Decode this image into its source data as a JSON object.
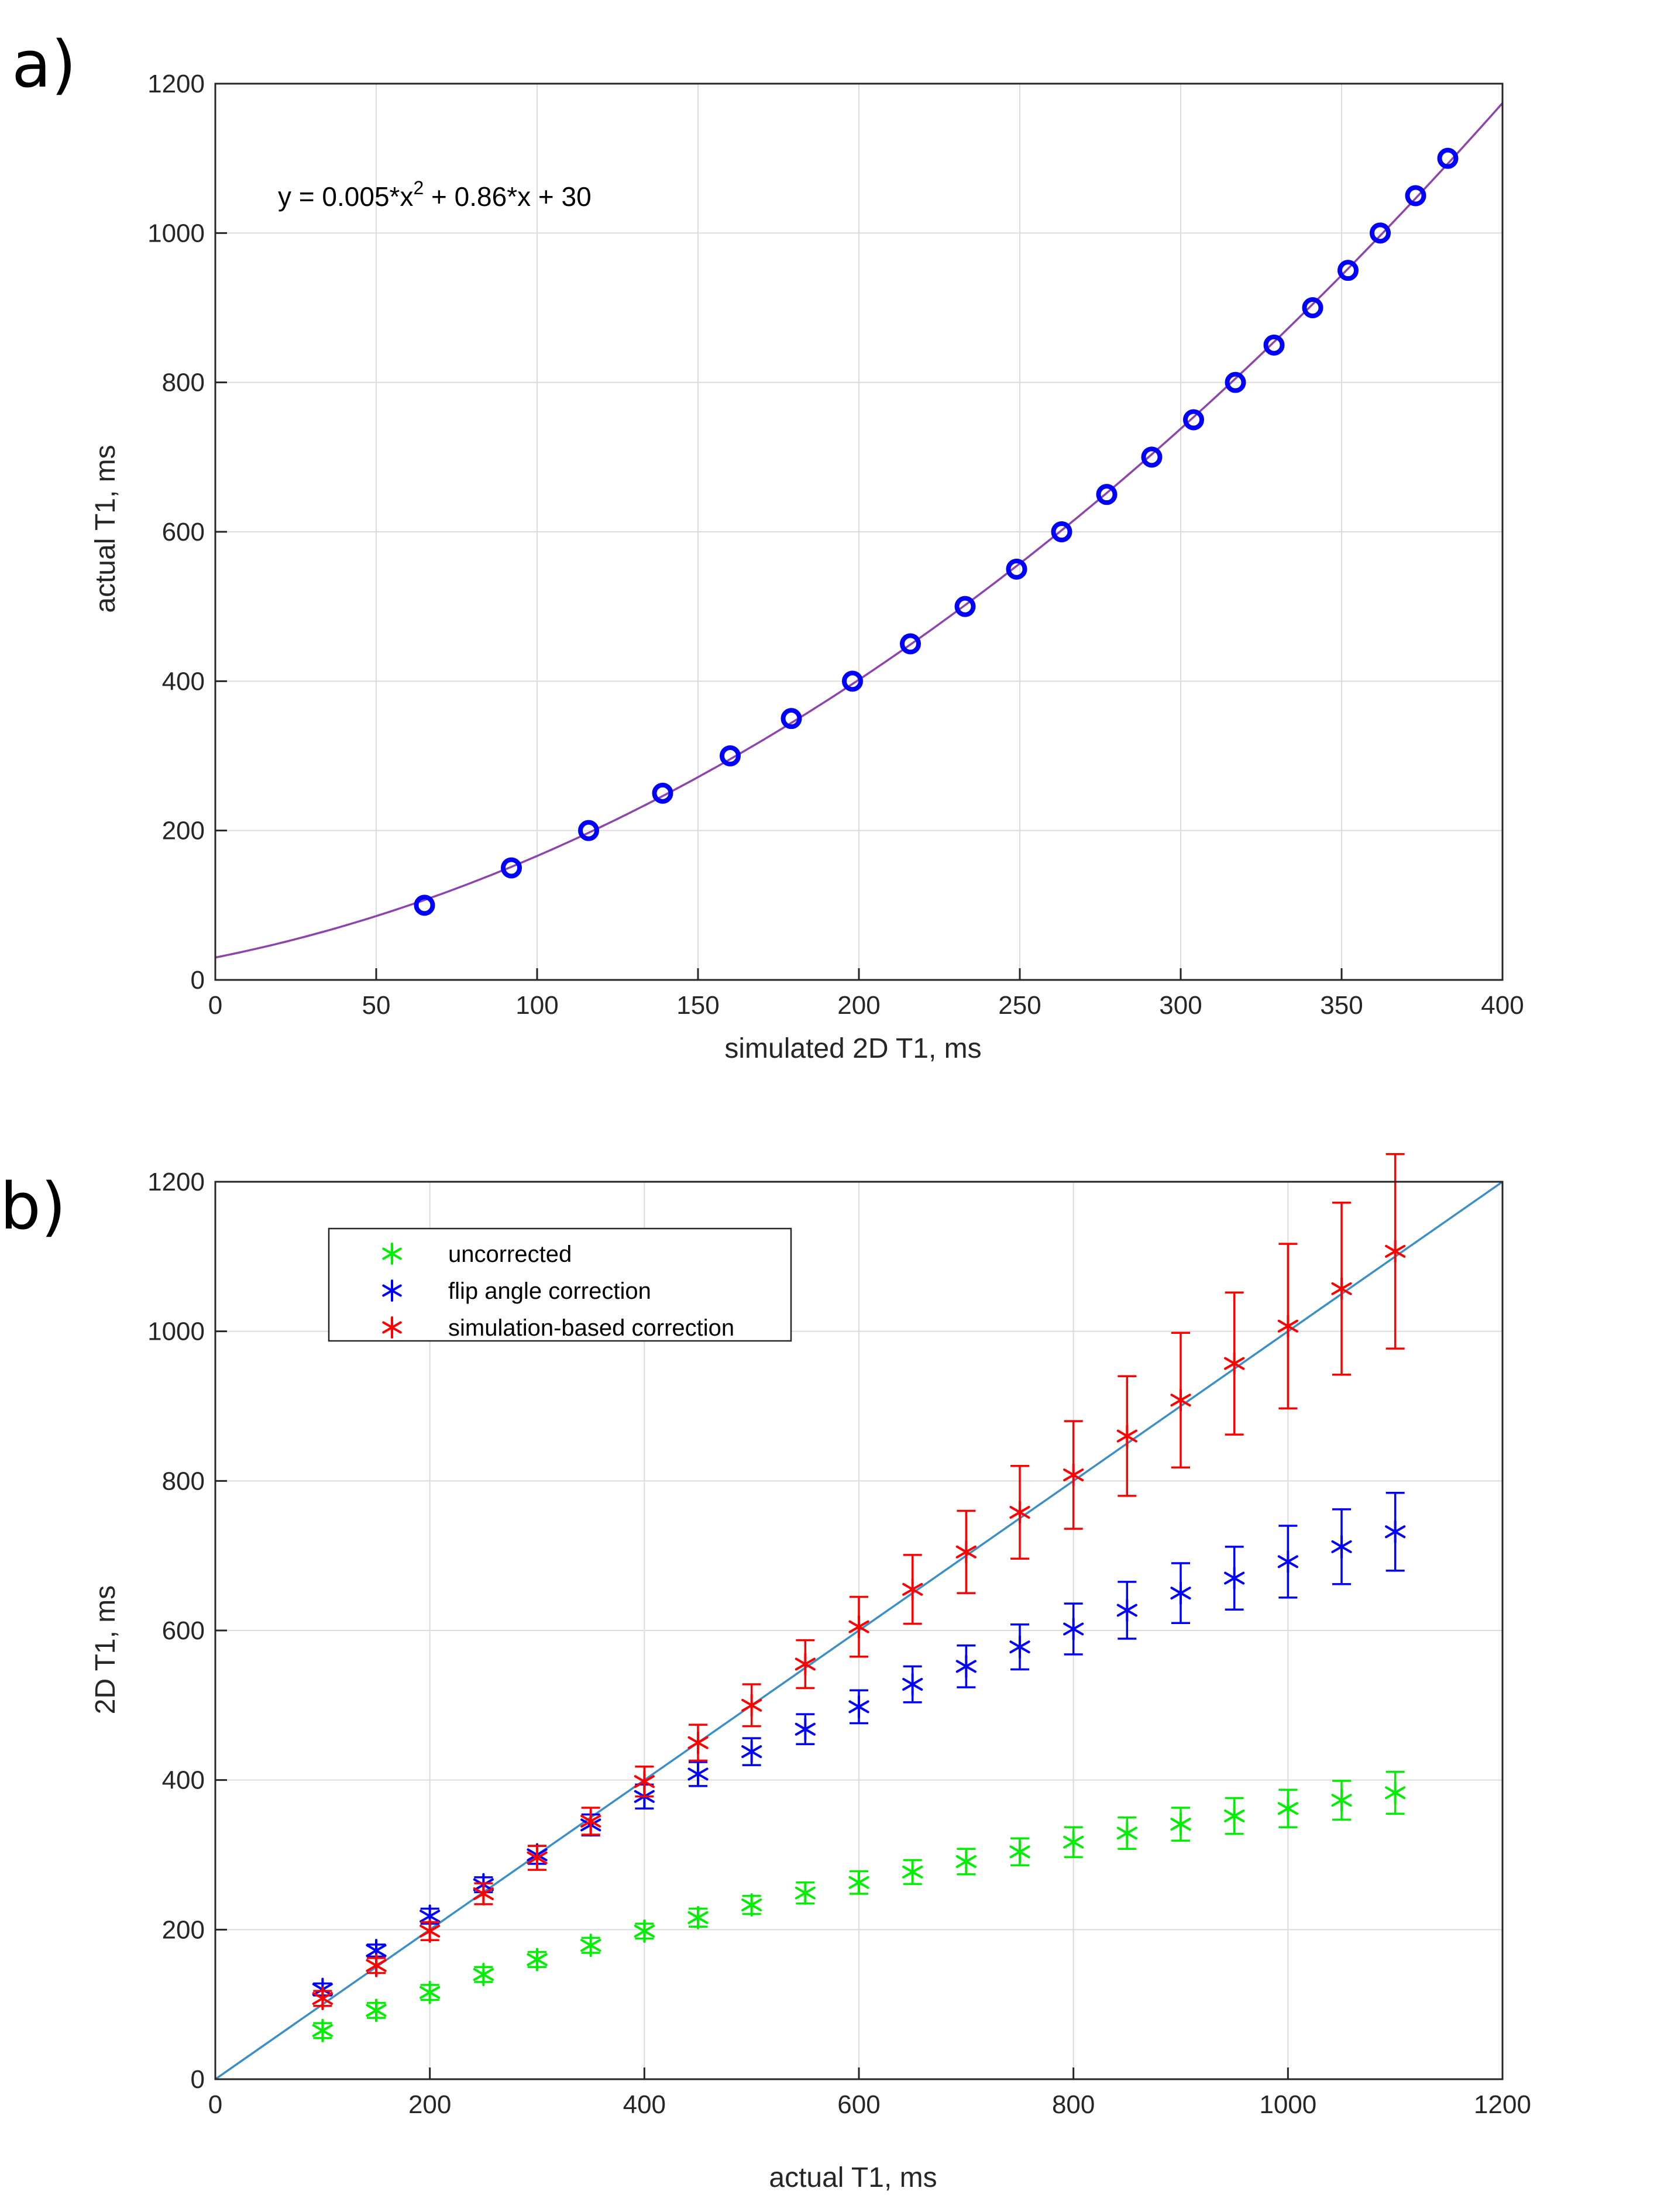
{
  "chart_data": [
    {
      "panel_label": "a)",
      "type": "scatter",
      "xlabel": "simulated 2D T1, ms",
      "ylabel": "actual T1, ms",
      "xlim": [
        0,
        400
      ],
      "ylim": [
        0,
        1200
      ],
      "xticks": [
        "0",
        "50",
        "100",
        "150",
        "200",
        "250",
        "300",
        "350",
        "400"
      ],
      "yticks": [
        "0",
        "200",
        "400",
        "600",
        "800",
        "1000",
        "1200"
      ],
      "grid": true,
      "equation": {
        "prefix": "y = 0.005*x",
        "exponent": "2",
        "suffix": " + 0.86*x + 30"
      },
      "fit_coefficients": {
        "a": 0.005,
        "b": 0.86,
        "c": 30
      },
      "fit_color": "#8e44ad",
      "points_color": "#0000ff",
      "series": [
        {
          "name": "data",
          "x": [
            65,
            92,
            116,
            139,
            160,
            179,
            198,
            216,
            233,
            249,
            263,
            277,
            291,
            304,
            317,
            329,
            341,
            352,
            362,
            373,
            383
          ],
          "y": [
            100,
            150,
            200,
            250,
            300,
            350,
            400,
            450,
            500,
            550,
            600,
            650,
            700,
            750,
            800,
            850,
            900,
            950,
            1000,
            1050,
            1100
          ]
        }
      ]
    },
    {
      "panel_label": "b)",
      "type": "scatter",
      "xlabel": "actual T1, ms",
      "ylabel": "2D T1, ms",
      "xlim": [
        0,
        1200
      ],
      "ylim": [
        0,
        1200
      ],
      "xticks": [
        "0",
        "200",
        "400",
        "600",
        "800",
        "1000",
        "1200"
      ],
      "yticks": [
        "0",
        "200",
        "400",
        "600",
        "800",
        "1000",
        "1200"
      ],
      "grid": true,
      "legend_position": "top-left",
      "identity_line_color": "#3b8fc7",
      "x": [
        100,
        150,
        200,
        250,
        300,
        350,
        400,
        450,
        500,
        550,
        600,
        650,
        700,
        750,
        800,
        850,
        900,
        950,
        1000,
        1050,
        1100
      ],
      "series": [
        {
          "name": "uncorrected",
          "color": "#00ee00",
          "values": [
            65,
            92,
            116,
            140,
            160,
            179,
            198,
            216,
            233,
            249,
            263,
            277,
            291,
            304,
            317,
            329,
            341,
            352,
            362,
            373,
            383
          ],
          "errors": [
            10,
            10,
            10,
            10,
            10,
            10,
            10,
            12,
            12,
            14,
            15,
            16,
            17,
            18,
            20,
            21,
            22,
            24,
            25,
            26,
            28
          ]
        },
        {
          "name": "flip angle correction",
          "color": "#0000ff",
          "values": [
            120,
            172,
            218,
            260,
            300,
            340,
            378,
            408,
            438,
            468,
            498,
            528,
            552,
            578,
            602,
            627,
            650,
            670,
            692,
            712,
            732
          ],
          "errors": [
            8,
            8,
            10,
            10,
            12,
            14,
            16,
            16,
            18,
            20,
            22,
            24,
            28,
            30,
            34,
            38,
            40,
            42,
            48,
            50,
            52
          ]
        },
        {
          "name": "simulation-based correction",
          "color": "#ff0000",
          "values": [
            108,
            152,
            198,
            248,
            296,
            345,
            398,
            450,
            500,
            555,
            605,
            655,
            705,
            758,
            808,
            860,
            908,
            957,
            1007,
            1057,
            1107
          ],
          "errors": [
            10,
            10,
            12,
            14,
            16,
            18,
            20,
            24,
            28,
            32,
            40,
            46,
            55,
            62,
            72,
            80,
            90,
            95,
            110,
            115,
            130
          ]
        }
      ]
    }
  ]
}
